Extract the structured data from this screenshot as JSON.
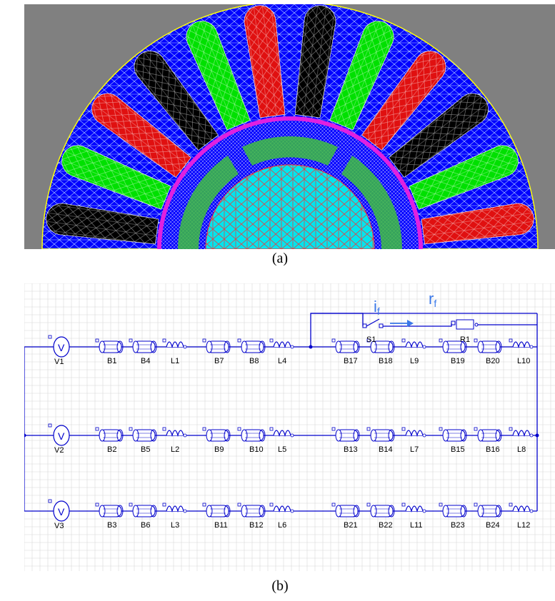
{
  "captions": {
    "a": "(a)",
    "b": "(b)"
  },
  "colors": {
    "background": "#808080",
    "stator_iron": "#0000ff",
    "rotor": "#00e5ee",
    "mesh_light": "#87ceeb",
    "mesh_red": "#ff3030",
    "slot_palette": [
      "#000000",
      "#00e000",
      "#e01010"
    ],
    "airgap": "#e020e0",
    "outline": "#ffff00",
    "wire": "#0000cc",
    "grid": "#d8d8d8",
    "annotation": "#3a78e8"
  },
  "fem_model": {
    "slot_count": 12,
    "slot_colors": [
      "black",
      "green",
      "red",
      "black",
      "green",
      "red",
      "black",
      "green",
      "red",
      "black",
      "green",
      "red"
    ]
  },
  "circuit": {
    "annotation": {
      "current": "i",
      "current_sub": "f",
      "resistance": "r",
      "resistance_sub": "f"
    },
    "switch_label": "S1",
    "resistor_label": "R1",
    "rows": [
      {
        "source": "V1",
        "labels": [
          "B1",
          "B4",
          "L1",
          "B7",
          "B8",
          "L4",
          "B17",
          "B18",
          "L9",
          "B19",
          "B20",
          "L10"
        ]
      },
      {
        "source": "V2",
        "labels": [
          "B2",
          "B5",
          "L2",
          "B9",
          "B10",
          "L5",
          "B13",
          "B14",
          "L7",
          "B15",
          "B16",
          "L8"
        ]
      },
      {
        "source": "V3",
        "labels": [
          "B3",
          "B6",
          "L3",
          "B11",
          "B12",
          "L6",
          "B21",
          "B22",
          "L11",
          "B23",
          "B24",
          "L12"
        ]
      }
    ]
  }
}
